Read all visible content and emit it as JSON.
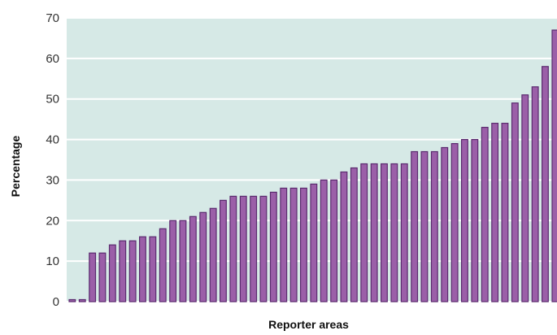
{
  "chart_data": {
    "type": "bar",
    "title": "",
    "xlabel": "Reporter areas",
    "ylabel": "Percentage",
    "ylim": [
      0,
      70
    ],
    "yticks": [
      0,
      10,
      20,
      30,
      40,
      50,
      60,
      70
    ],
    "grid": "horizontal",
    "values": [
      0.5,
      0.5,
      12,
      12,
      14,
      15,
      15,
      16,
      16,
      18,
      20,
      20,
      21,
      22,
      23,
      25,
      26,
      26,
      26,
      26,
      27,
      28,
      28,
      28,
      29,
      30,
      30,
      32,
      33,
      34,
      34,
      34,
      34,
      34,
      37,
      37,
      37,
      38,
      39,
      40,
      40,
      43,
      44,
      44,
      49,
      51,
      53,
      58,
      67
    ],
    "colors": {
      "plot_background": "#d6e9e6",
      "bar_fill": "#9b5fa8",
      "bar_stroke": "#5a2a6e",
      "gridline": "#ffffff"
    }
  }
}
